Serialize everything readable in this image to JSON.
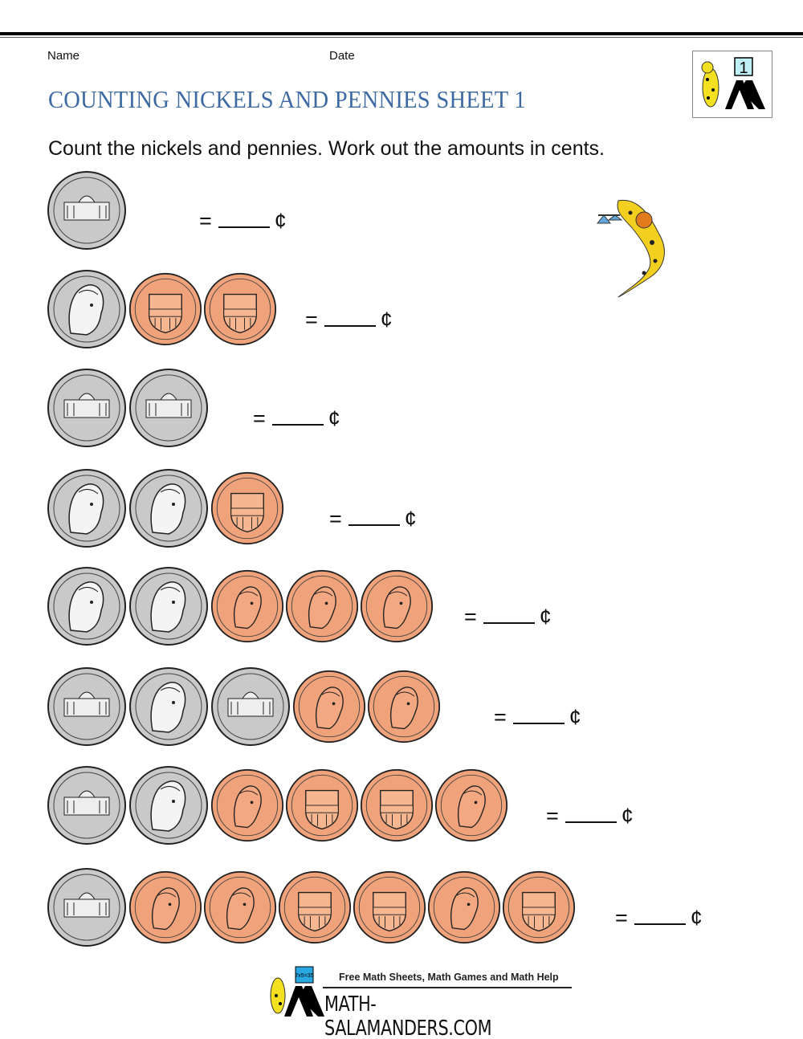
{
  "header": {
    "name_label": "Name",
    "date_label": "Date",
    "logo_number": "1"
  },
  "title": "COUNTING NICKELS AND PENNIES SHEET 1",
  "instructions": "Count the nickels and pennies. Work out the amounts in cents.",
  "cent_symbol": "¢",
  "equals": "=",
  "colors": {
    "title": "#3e6aa3",
    "nickel": "#c9c9c9",
    "penny": "#f0a27a"
  },
  "rows": [
    {
      "coins": [
        "nickel-back"
      ]
    },
    {
      "coins": [
        "nickel-front",
        "penny-back",
        "penny-back"
      ]
    },
    {
      "coins": [
        "nickel-back",
        "nickel-back"
      ]
    },
    {
      "coins": [
        "nickel-front",
        "nickel-front",
        "penny-back"
      ]
    },
    {
      "coins": [
        "nickel-front",
        "nickel-front",
        "penny-front",
        "penny-front",
        "penny-front"
      ]
    },
    {
      "coins": [
        "nickel-back",
        "nickel-front",
        "nickel-back",
        "penny-front",
        "penny-front"
      ]
    },
    {
      "coins": [
        "nickel-back",
        "nickel-front",
        "penny-front",
        "penny-back",
        "penny-back",
        "penny-front"
      ]
    },
    {
      "coins": [
        "nickel-back",
        "penny-front",
        "penny-front",
        "penny-back",
        "penny-back",
        "penny-front",
        "penny-back"
      ]
    }
  ],
  "footer": {
    "tagline": "Free Math Sheets, Math Games and Math Help",
    "brand": "MATH-SALAMANDERS.COM",
    "logo_sum": "7x5=35"
  }
}
